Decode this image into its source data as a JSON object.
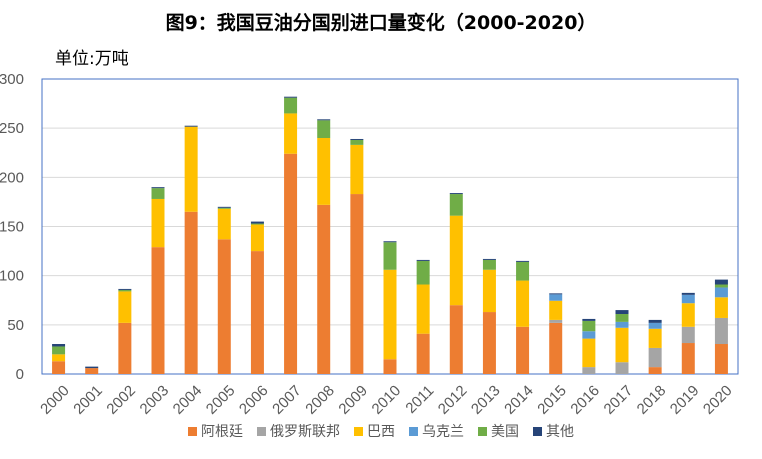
{
  "chart_data": {
    "type": "bar",
    "stacked": true,
    "title": "图9：我国豆油分国别进口量变化（2000-2020）",
    "unit_label": "单位:万吨",
    "xlabel": "",
    "ylabel": "",
    "ylim": [
      0,
      300
    ],
    "yticks": [
      0,
      50,
      100,
      150,
      200,
      250,
      300
    ],
    "grid": true,
    "legend_position": "bottom",
    "categories": [
      "2000",
      "2001",
      "2002",
      "2003",
      "2004",
      "2005",
      "2006",
      "2007",
      "2008",
      "2009",
      "2010",
      "2011",
      "2012",
      "2013",
      "2014",
      "2015",
      "2016",
      "2017",
      "2018",
      "2019",
      "2020"
    ],
    "series": [
      {
        "name": "阿根廷",
        "color": "#ED7D31",
        "values": [
          13,
          6,
          52,
          129,
          165,
          137,
          125,
          224,
          172,
          183,
          15,
          41,
          70,
          63,
          48,
          52,
          0,
          0,
          7,
          31.5,
          30.5
        ]
      },
      {
        "name": "俄罗斯联邦",
        "color": "#A5A5A5",
        "values": [
          0,
          0,
          0,
          0,
          0,
          0,
          0,
          0,
          0,
          0,
          0,
          0,
          0,
          0,
          0,
          3,
          7,
          12,
          19.5,
          16.5,
          26.5
        ]
      },
      {
        "name": "巴西",
        "color": "#FFC000",
        "values": [
          7,
          0,
          32,
          49,
          86.5,
          31,
          27,
          41,
          68,
          50,
          91,
          50,
          91,
          43,
          47,
          19.5,
          29,
          35,
          19.5,
          24,
          21
        ]
      },
      {
        "name": "乌克兰",
        "color": "#5B9BD5",
        "values": [
          0,
          0,
          0,
          0,
          0,
          0,
          0,
          0,
          0,
          0,
          0,
          0,
          0,
          0,
          0,
          6.5,
          7.5,
          6,
          6,
          8.5,
          10
        ]
      },
      {
        "name": "美国",
        "color": "#70AD47",
        "values": [
          8,
          0,
          1.5,
          11,
          0,
          1,
          1,
          16,
          18,
          5,
          28,
          24,
          22,
          10,
          19,
          0,
          10.5,
          8,
          0,
          0,
          3
        ]
      },
      {
        "name": "其他",
        "color": "#264478",
        "values": [
          2.5,
          1.5,
          1,
          1,
          1,
          1,
          2,
          1,
          1,
          1,
          1,
          1,
          1,
          1,
          1,
          1,
          2,
          4,
          3,
          2,
          5
        ]
      }
    ]
  }
}
